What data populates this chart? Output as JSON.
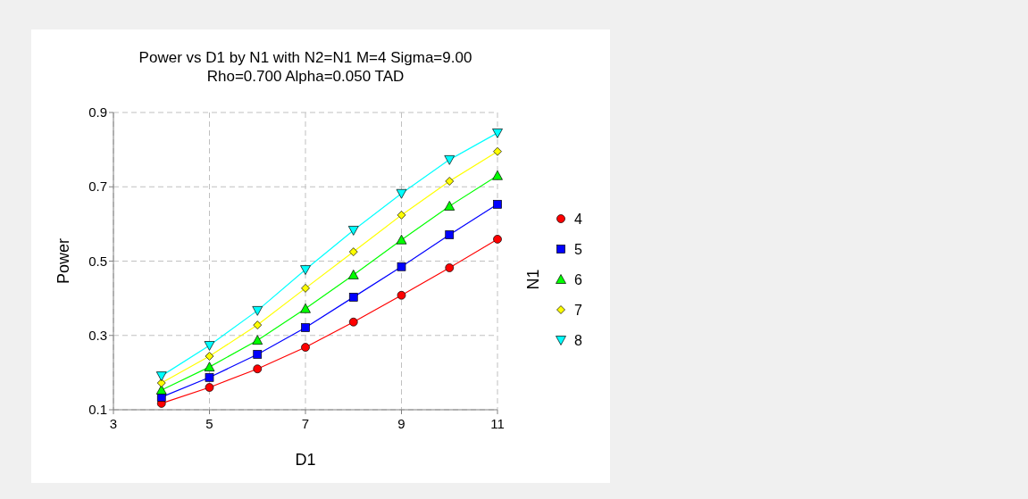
{
  "chart_data": {
    "type": "line",
    "title": "Power vs D1 by N1 with N2=N1 M=4 Sigma=9.00\nRho=0.700 Alpha=0.050 TAD",
    "xlabel": "D1",
    "ylabel": "Power",
    "legend_title": "N1",
    "x": [
      4,
      5,
      6,
      7,
      8,
      9,
      10,
      11
    ],
    "series": [
      {
        "name": "4",
        "color": "#ff0000",
        "marker": "circle",
        "values": [
          0.117,
          0.16,
          0.21,
          0.268,
          0.336,
          0.408,
          0.482,
          0.559
        ]
      },
      {
        "name": "5",
        "color": "#0000ff",
        "marker": "square",
        "values": [
          0.134,
          0.187,
          0.249,
          0.321,
          0.403,
          0.485,
          0.571,
          0.653
        ]
      },
      {
        "name": "6",
        "color": "#00ff00",
        "marker": "triangle",
        "values": [
          0.153,
          0.215,
          0.287,
          0.372,
          0.463,
          0.557,
          0.648,
          0.73
        ]
      },
      {
        "name": "7",
        "color": "#ffff00",
        "marker": "diamond",
        "values": [
          0.172,
          0.244,
          0.328,
          0.427,
          0.525,
          0.624,
          0.715,
          0.795
        ]
      },
      {
        "name": "8",
        "color": "#00ffff",
        "marker": "triangle-down",
        "values": [
          0.191,
          0.273,
          0.367,
          0.477,
          0.583,
          0.682,
          0.773,
          0.845
        ]
      }
    ],
    "xlim": [
      3,
      11
    ],
    "xticks": [
      3,
      5,
      7,
      9,
      11
    ],
    "ylim": [
      0.1,
      0.9
    ],
    "yticks": [
      0.1,
      0.3,
      0.5,
      0.7,
      0.9
    ],
    "grid": true,
    "legend": "right",
    "line_style": "solid"
  }
}
